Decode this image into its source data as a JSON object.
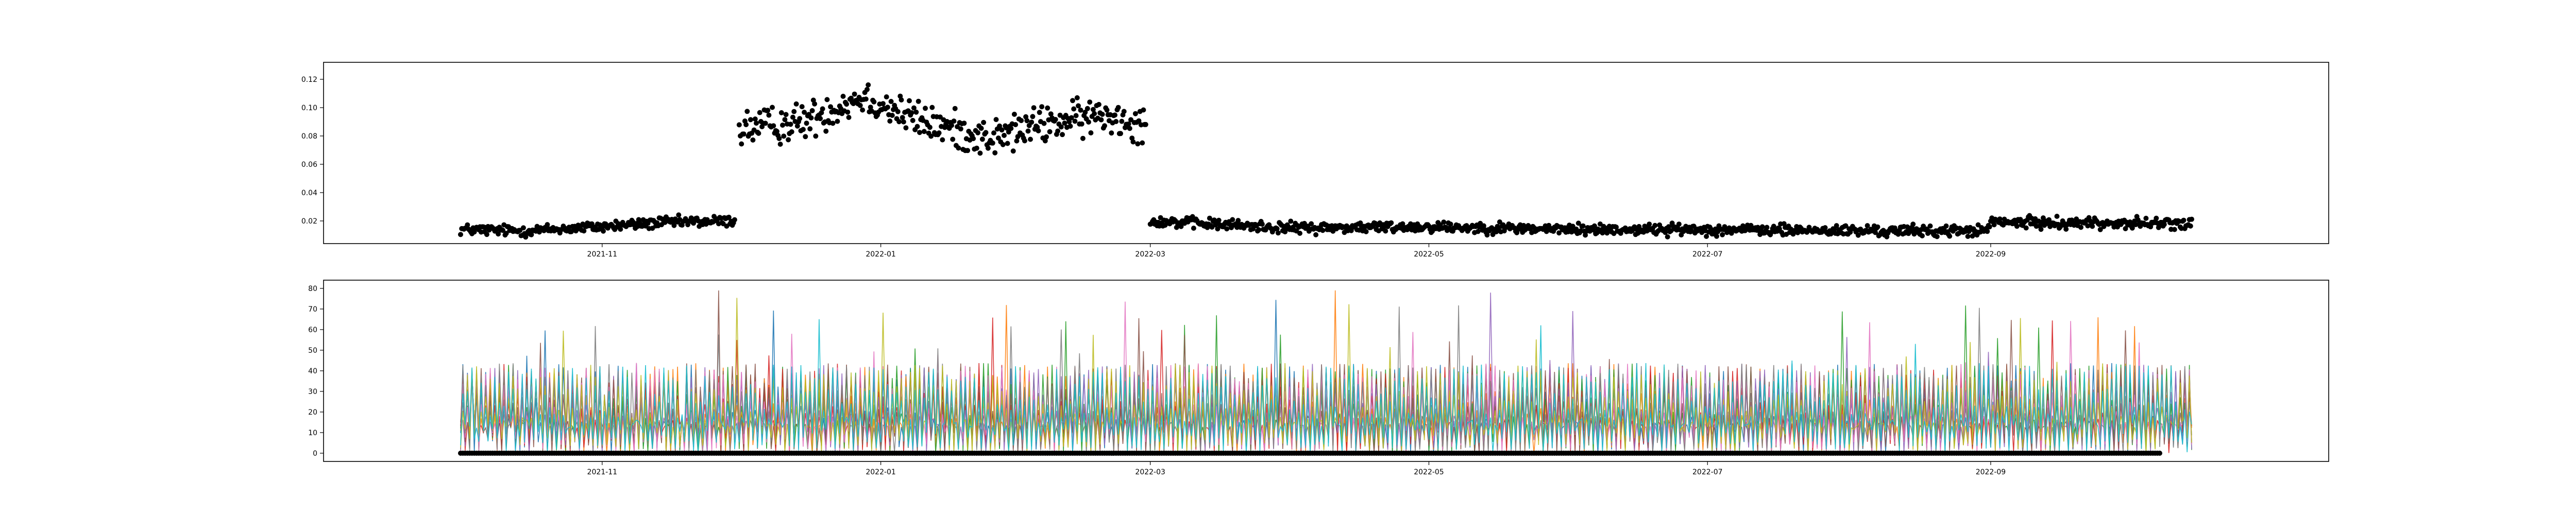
{
  "chart_data": [
    {
      "type": "scatter",
      "title": "",
      "xlabel": "",
      "ylabel": "",
      "x_ticks": [
        "2021-11",
        "2022-01",
        "2022-03",
        "2022-05",
        "2022-07",
        "2022-09"
      ],
      "y_ticks": [
        "0.02",
        "0.04",
        "0.06",
        "0.08",
        "0.10",
        "0.12"
      ],
      "xlim": [
        "2021-09-01",
        "2022-11-14"
      ],
      "ylim": [
        0.004,
        0.132
      ],
      "grid": false,
      "legend": "none",
      "marker_color": "#000000",
      "segments": [
        {
          "x_start": "2021-10-01",
          "x_end": "2021-11-30",
          "level_points": [
            [
              "2021-10-01",
              0.014
            ],
            [
              "2021-10-15",
              0.013
            ],
            [
              "2021-11-01",
              0.016
            ],
            [
              "2021-11-15",
              0.019
            ],
            [
              "2021-11-30",
              0.02
            ]
          ],
          "noise": 0.003
        },
        {
          "x_start": "2021-12-01",
          "x_end": "2022-02-28",
          "level_points": [
            [
              "2021-12-01",
              0.085
            ],
            [
              "2021-12-15",
              0.09
            ],
            [
              "2021-12-28",
              0.108
            ],
            [
              "2022-01-10",
              0.09
            ],
            [
              "2022-01-25",
              0.078
            ],
            [
              "2022-02-05",
              0.088
            ],
            [
              "2022-02-20",
              0.095
            ],
            [
              "2022-02-28",
              0.088
            ]
          ],
          "noise": 0.01
        },
        {
          "x_start": "2022-03-01",
          "x_end": "2022-10-15",
          "level_points": [
            [
              "2022-03-01",
              0.02
            ],
            [
              "2022-04-01",
              0.015
            ],
            [
              "2022-05-01",
              0.016
            ],
            [
              "2022-06-01",
              0.014
            ],
            [
              "2022-07-01",
              0.014
            ],
            [
              "2022-08-01",
              0.013
            ],
            [
              "2022-08-31",
              0.013
            ],
            [
              "2022-09-01",
              0.019
            ],
            [
              "2022-10-15",
              0.018
            ]
          ],
          "noise": 0.003
        }
      ]
    },
    {
      "type": "line",
      "title": "",
      "xlabel": "",
      "ylabel": "",
      "x_ticks": [
        "2021-11",
        "2022-01",
        "2022-03",
        "2022-05",
        "2022-07",
        "2022-09"
      ],
      "y_ticks": [
        "0",
        "10",
        "20",
        "30",
        "40",
        "50",
        "60",
        "70",
        "80"
      ],
      "xlim": [
        "2021-09-01",
        "2022-11-14"
      ],
      "ylim": [
        -4,
        84
      ],
      "grid": false,
      "legend": "none",
      "x_start": "2021-10-01",
      "x_end": "2022-10-15",
      "series_colors": [
        "#1f77b4",
        "#ff7f0e",
        "#2ca02c",
        "#d62728",
        "#9467bd",
        "#8c564b",
        "#e377c2",
        "#7f7f7f",
        "#bcbd22",
        "#17becf"
      ],
      "typical_peak": 35,
      "max_value": 80,
      "zero_markers": {
        "x_start": "2021-10-01",
        "x_end": "2022-10-08",
        "value": 0,
        "color": "#000000"
      }
    }
  ]
}
